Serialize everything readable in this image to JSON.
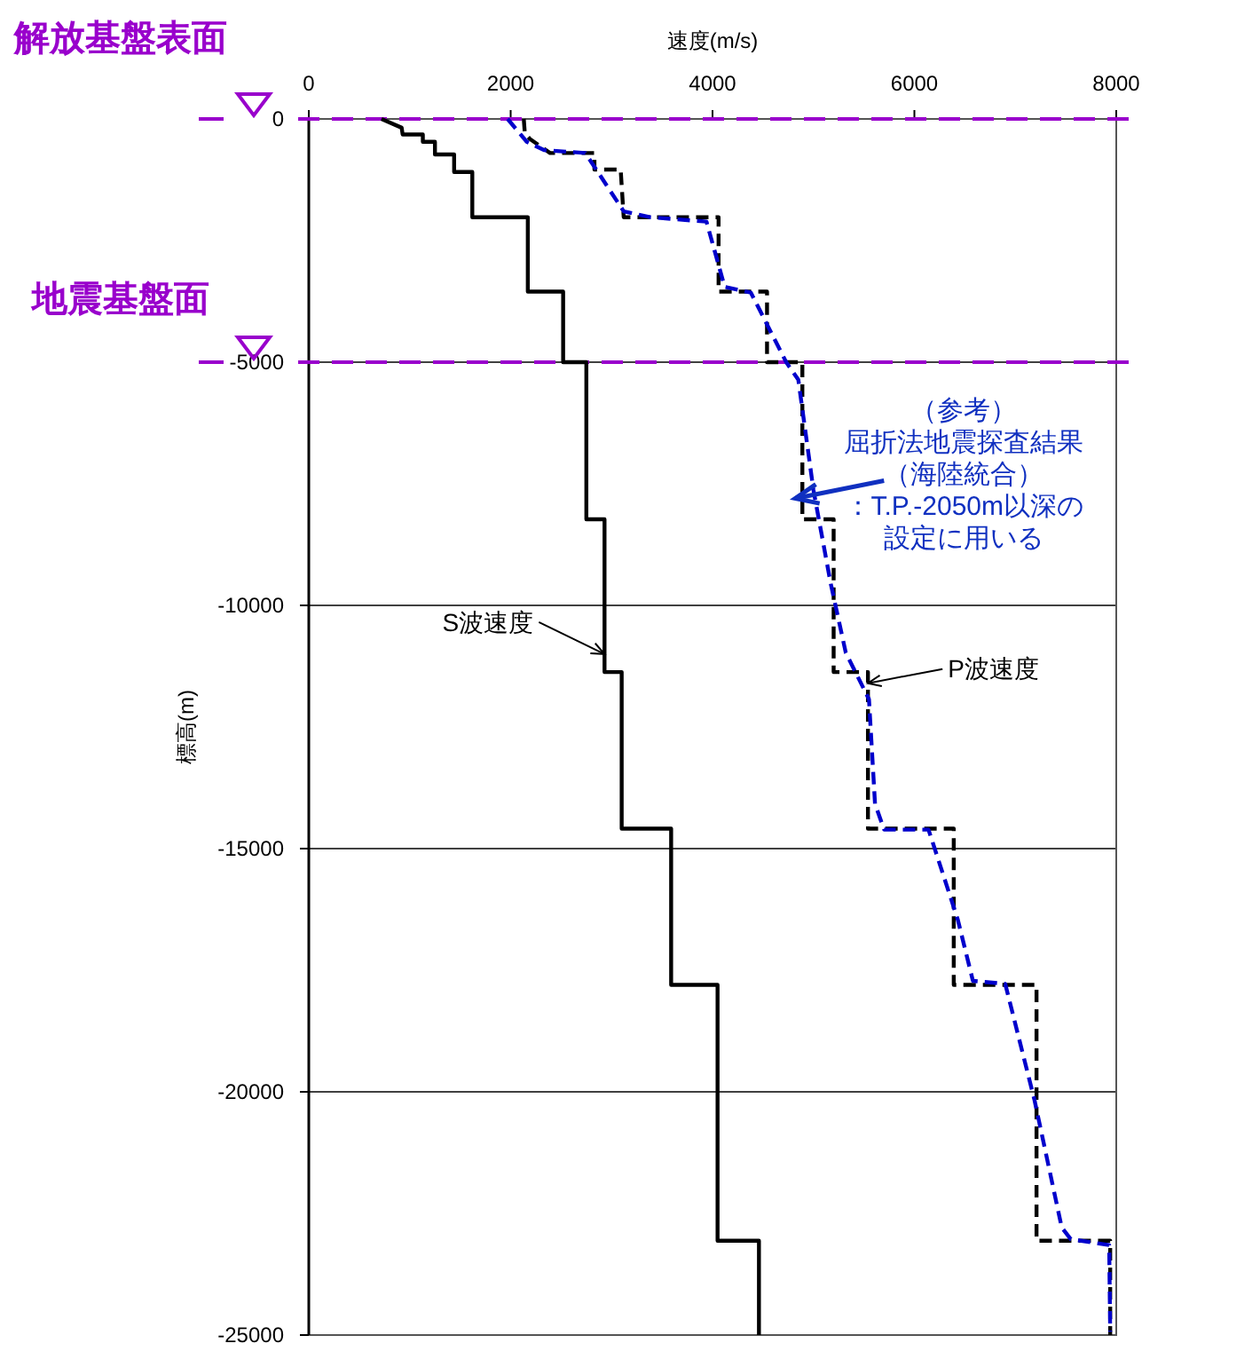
{
  "chart_data": {
    "type": "line",
    "xlabel": "速度(m/s)",
    "ylabel": "標高(m)",
    "xlim": [
      0,
      8000
    ],
    "xticks": [
      0,
      2000,
      4000,
      6000,
      8000
    ],
    "ylim": [
      -25000,
      0
    ],
    "yticks": [
      0,
      -5000,
      -10000,
      -15000,
      -20000,
      -25000
    ],
    "grid": "y",
    "series": [
      {
        "color": "#000000",
        "line_style": "solid",
        "x": [
          720,
          920,
          930,
          1130,
          1130,
          1250,
          1250,
          1440,
          1440,
          1620,
          1620,
          2170,
          2170,
          2520,
          2520,
          2750,
          2750,
          2930,
          2930,
          3100,
          3100,
          3590,
          3590,
          4050,
          4050,
          4460,
          4460
        ],
        "values": [
          0,
          -180,
          -320,
          -320,
          -470,
          -470,
          -730,
          -730,
          -1090,
          -1090,
          -2020,
          -2020,
          -3550,
          -3550,
          -5000,
          -5000,
          -8230,
          -8230,
          -11370,
          -11370,
          -14590,
          -14590,
          -17800,
          -17800,
          -23060,
          -23060,
          -25000
        ]
      },
      {
        "color": "#000000",
        "line_style": "dashed",
        "x": [
          2130,
          2140,
          2190,
          2390,
          2830,
          2830,
          3090,
          3120,
          4060,
          4060,
          4540,
          4540,
          4890,
          4890,
          5200,
          5200,
          5540,
          5540,
          6390,
          6390,
          7210,
          7210,
          7940,
          7940
        ],
        "values": [
          0,
          -290,
          -410,
          -700,
          -700,
          -1040,
          -1040,
          -2020,
          -2020,
          -3550,
          -3550,
          -5000,
          -5000,
          -8230,
          -8230,
          -11370,
          -11370,
          -14590,
          -14590,
          -17800,
          -17800,
          -23060,
          -23060,
          -25000
        ]
      },
      {
        "color": "#0000cc",
        "line_style": "dashed",
        "x": [
          1970,
          2160,
          2330,
          2740,
          3120,
          3380,
          3940,
          4120,
          4380,
          4730,
          4850,
          5000,
          5170,
          5320,
          5550,
          5610,
          5700,
          6140,
          6430,
          6580,
          6900,
          7190,
          7460,
          7550,
          7930,
          7940
        ],
        "values": [
          0,
          -470,
          -640,
          -700,
          -1900,
          -2020,
          -2110,
          -3450,
          -3570,
          -5000,
          -5360,
          -7630,
          -9540,
          -10970,
          -11930,
          -14080,
          -14610,
          -14610,
          -16460,
          -17720,
          -17780,
          -20170,
          -22790,
          -23030,
          -23150,
          -24930
        ]
      }
    ],
    "ref_lines": [
      {
        "axis": "y",
        "value": 0,
        "label": "解放基盤表面",
        "color": "#9900cc",
        "line_style": "dashed"
      },
      {
        "axis": "y",
        "value": -5000,
        "label": "地震基盤面",
        "color": "#9900cc",
        "line_style": "dashed"
      }
    ],
    "annotations": [
      {
        "text": "S波速度",
        "x": 2930,
        "y": -11000
      },
      {
        "text": "P波速度",
        "x": 5540,
        "y": -11600
      },
      {
        "text": "（参考）屈折法地震探査結果（海陸統合）：T.P.-2050m以深の設定に用いる",
        "x": 4820,
        "y": -7800
      }
    ]
  }
}
